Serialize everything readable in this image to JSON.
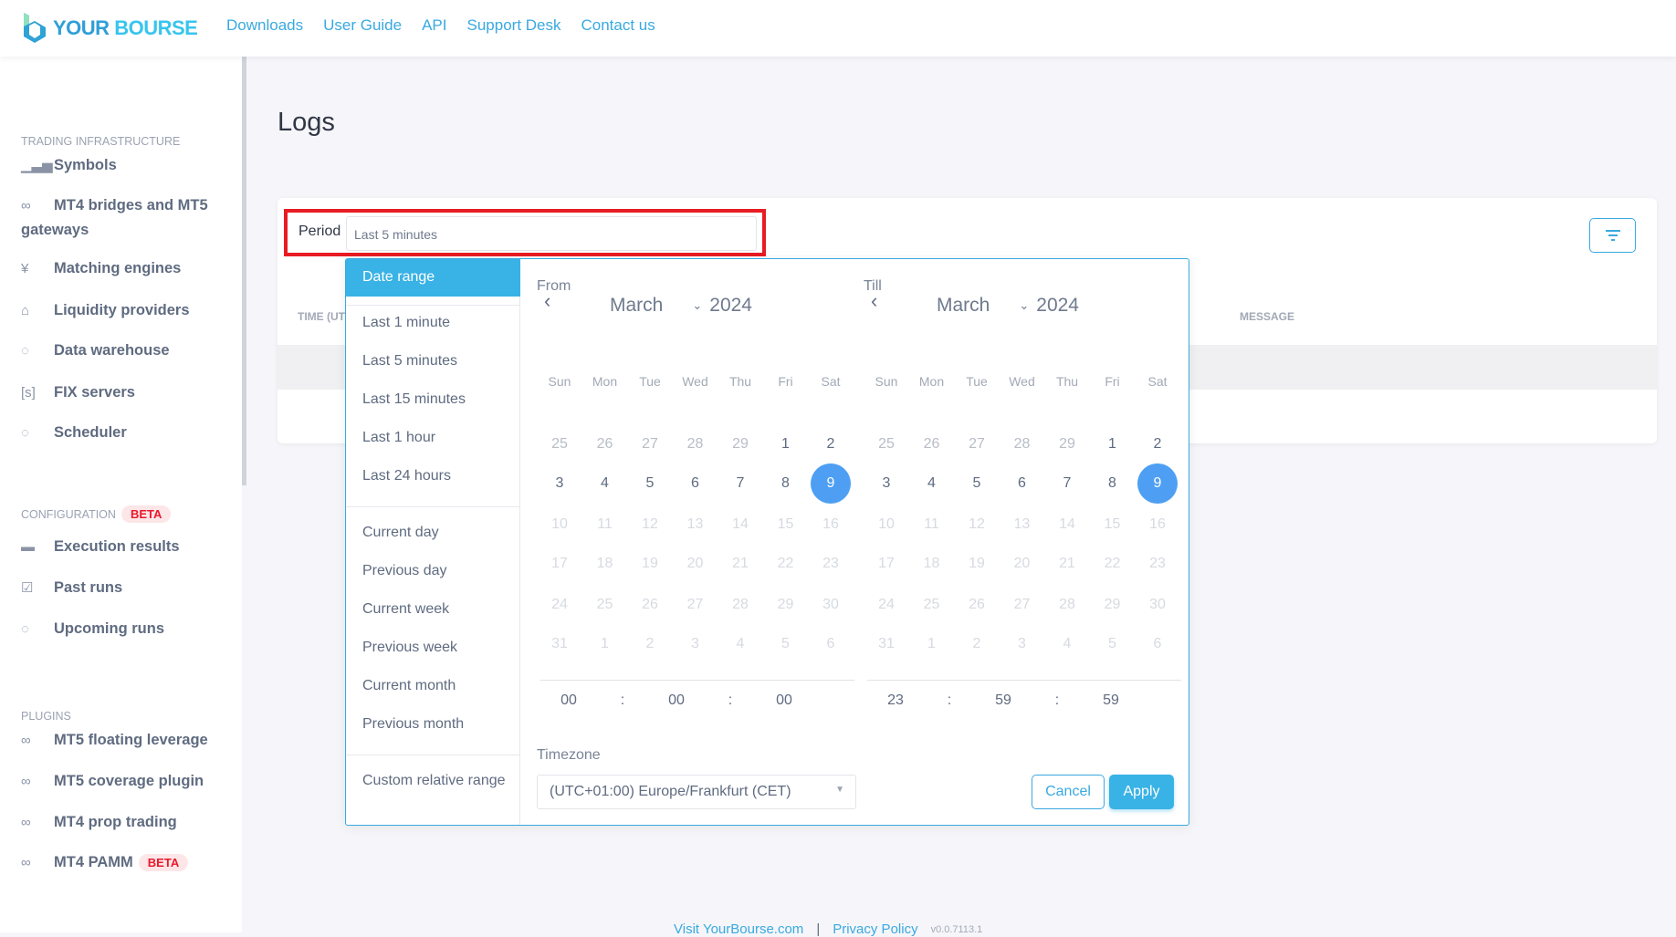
{
  "header": {
    "logo": "YOUR BOURSE",
    "logo_a": "YOUR",
    "logo_b": "BOURSE",
    "nav": [
      "Downloads",
      "User Guide",
      "API",
      "Support Desk",
      "Contact us"
    ]
  },
  "sidebar": {
    "sections": [
      {
        "title": "Trading infrastructure",
        "badge": "",
        "items": [
          {
            "label": "Symbols",
            "icon": "bar-chart-icon"
          },
          {
            "label": "MT4 bridges and MT5 gateways",
            "icon": "link-icon"
          },
          {
            "label": "Matching engines",
            "icon": "yen-circle-icon"
          },
          {
            "label": "Liquidity providers",
            "icon": "bank-icon"
          },
          {
            "label": "Data warehouse",
            "icon": "ring-icon"
          },
          {
            "label": "FIX servers",
            "icon": "s-box-icon"
          },
          {
            "label": "Scheduler",
            "icon": "ring-icon"
          }
        ]
      },
      {
        "title": "Configuration",
        "badge": "BETA",
        "items": [
          {
            "label": "Execution results",
            "icon": "folder-icon"
          },
          {
            "label": "Past runs",
            "icon": "checked-doc-icon"
          },
          {
            "label": "Upcoming runs",
            "icon": "ring-icon"
          }
        ]
      },
      {
        "title": "Plugins",
        "badge": "",
        "items": [
          {
            "label": "MT5 floating leverage",
            "icon": "link-icon"
          },
          {
            "label": "MT5 coverage plugin",
            "icon": "link-icon"
          },
          {
            "label": "MT4 prop trading",
            "icon": "link-icon"
          },
          {
            "label": "MT4 PAMM",
            "icon": "link-icon",
            "badge": "BETA"
          }
        ]
      }
    ]
  },
  "page": {
    "title": "Logs",
    "period_label": "Period",
    "period_value": "Last 5 minutes",
    "columns": [
      "TIME (UTC",
      "MESSAGE"
    ]
  },
  "popup": {
    "menu_active": "Date range",
    "menu_groups": [
      [
        "Last 1 minute",
        "Last 5 minutes",
        "Last 15 minutes",
        "Last 1 hour",
        "Last 24 hours"
      ],
      [
        "Current day",
        "Previous day",
        "Current week",
        "Previous week",
        "Current month",
        "Previous month"
      ],
      [
        "Custom relative range"
      ]
    ],
    "from_label": "From",
    "till_label": "Till",
    "from": {
      "month": "March",
      "year": "2024",
      "time": [
        "00",
        "00",
        "00"
      ]
    },
    "till": {
      "month": "March",
      "year": "2024",
      "time": [
        "23",
        "59",
        "59"
      ]
    },
    "weekdays": [
      "Sun",
      "Mon",
      "Tue",
      "Wed",
      "Thu",
      "Fri",
      "Sat"
    ],
    "weeks": [
      [
        25,
        26,
        27,
        28,
        29,
        1,
        2
      ],
      [
        3,
        4,
        5,
        6,
        7,
        8,
        9
      ],
      [
        10,
        11,
        12,
        13,
        14,
        15,
        16
      ],
      [
        17,
        18,
        19,
        20,
        21,
        22,
        23
      ],
      [
        24,
        25,
        26,
        27,
        28,
        29,
        30
      ],
      [
        31,
        1,
        2,
        3,
        4,
        5,
        6
      ]
    ],
    "week_states": [
      "oooooaa",
      "aaaaaas",
      "ddddddd",
      "ddddddd",
      "ddddddd",
      "ddddddd"
    ],
    "selected_day": 9,
    "timezone_label": "Timezone",
    "timezone_value": "(UTC+01:00) Europe/Frankfurt (CET)",
    "cancel": "Cancel",
    "apply": "Apply"
  },
  "footer": {
    "visit": "Visit YourBourse.com",
    "sep": "|",
    "privacy": "Privacy Policy",
    "version": "v0.0.7113.1"
  },
  "colors": {
    "accent": "#39b2e5",
    "selected": "#4e9ff3",
    "highlight_box": "#e81c23",
    "beta": "#e8192c"
  }
}
